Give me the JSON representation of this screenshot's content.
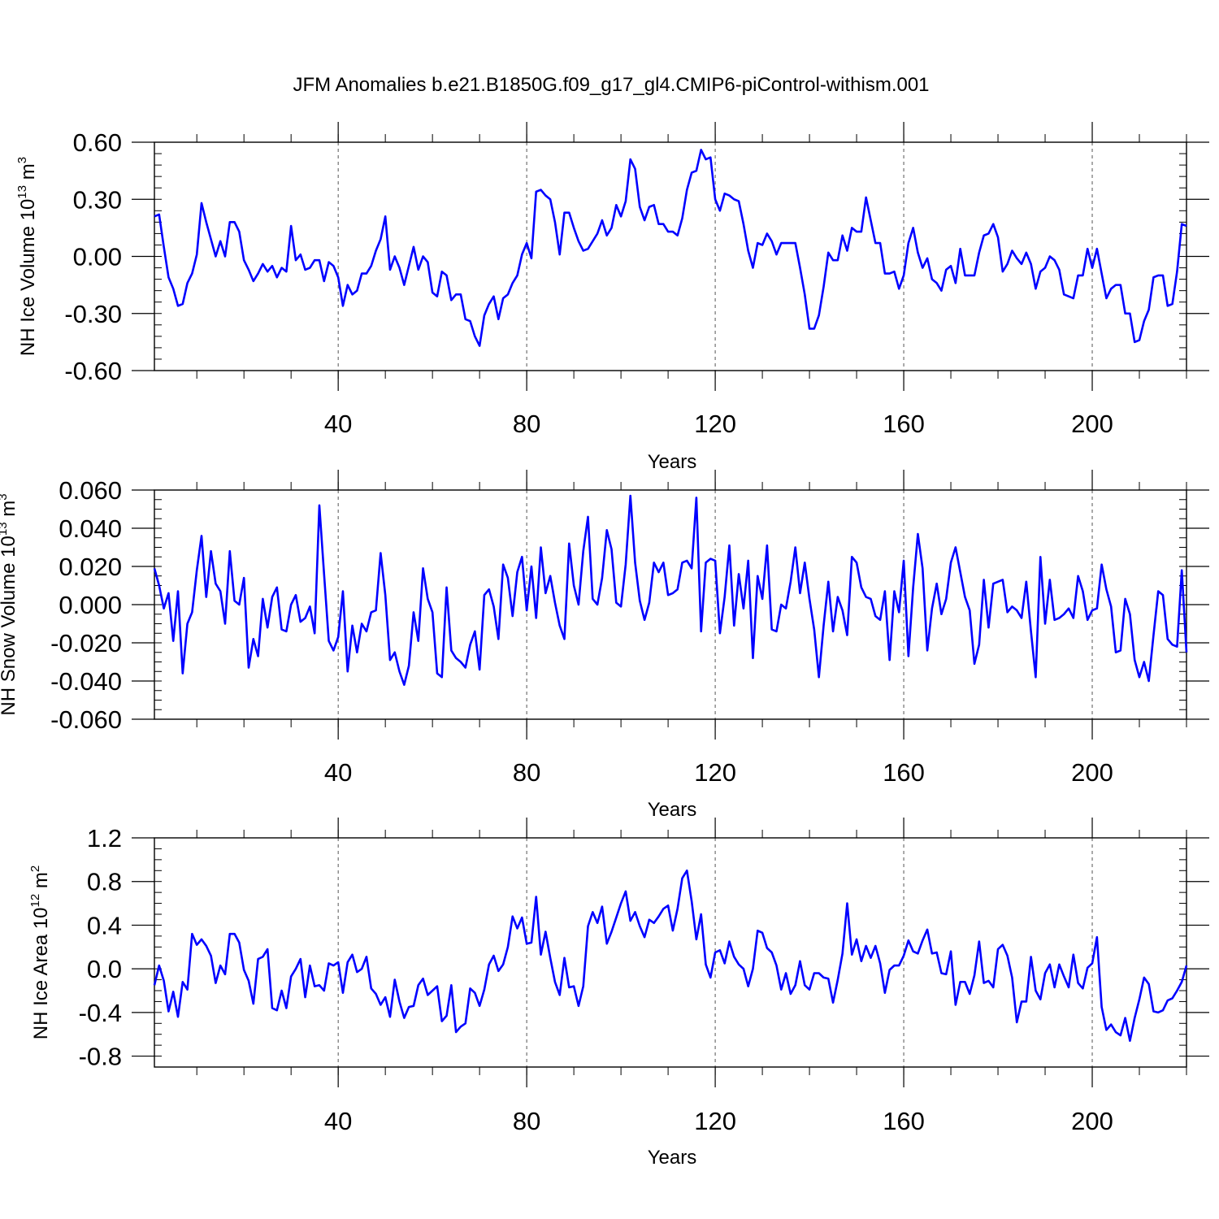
{
  "title": "JFM Anomalies b.e21.B1850G.f09_g17_gl4.CMIP6-piControl-withism.001",
  "line_color": "#0000ff",
  "chart_data": [
    {
      "type": "line",
      "xlabel": "Years",
      "ylabel": {
        "main": "NH Ice Volume 10",
        "exp": "13",
        "unit": " m",
        "unit_exp": "3"
      },
      "xlim": [
        1,
        220
      ],
      "ylim": [
        -0.6,
        0.6
      ],
      "xticks": [
        40,
        80,
        120,
        160,
        200
      ],
      "xtick_labels": [
        "40",
        "80",
        "120",
        "160",
        "200"
      ],
      "yticks": [
        0.6,
        0.3,
        0.0,
        -0.3,
        -0.6
      ],
      "ytick_labels": [
        "0.60",
        "0.30",
        "0.00",
        "-0.30",
        "-0.60"
      ],
      "ygrid_minor_step": 0.06,
      "values": [
        0.21,
        0.22,
        0.05,
        -0.11,
        -0.17,
        -0.26,
        -0.25,
        -0.14,
        -0.09,
        0.01,
        0.28,
        0.18,
        0.09,
        0.0,
        0.08,
        0.0,
        0.18,
        0.18,
        0.13,
        -0.02,
        -0.07,
        -0.13,
        -0.09,
        -0.04,
        -0.08,
        -0.05,
        -0.11,
        -0.06,
        -0.08,
        0.16,
        -0.02,
        0.01,
        -0.07,
        -0.06,
        -0.02,
        -0.02,
        -0.13,
        -0.03,
        -0.05,
        -0.11,
        -0.26,
        -0.15,
        -0.2,
        -0.18,
        -0.09,
        -0.09,
        -0.05,
        0.03,
        0.09,
        0.21,
        -0.07,
        0.0,
        -0.06,
        -0.15,
        -0.05,
        0.05,
        -0.07,
        0.0,
        -0.03,
        -0.19,
        -0.21,
        -0.08,
        -0.1,
        -0.23,
        -0.2,
        -0.2,
        -0.33,
        -0.34,
        -0.42,
        -0.47,
        -0.31,
        -0.25,
        -0.21,
        -0.33,
        -0.22,
        -0.2,
        -0.14,
        -0.1,
        0.01,
        0.07,
        -0.01,
        0.34,
        0.35,
        0.32,
        0.3,
        0.18,
        0.01,
        0.23,
        0.23,
        0.15,
        0.08,
        0.03,
        0.04,
        0.08,
        0.12,
        0.19,
        0.11,
        0.15,
        0.27,
        0.21,
        0.29,
        0.51,
        0.46,
        0.26,
        0.19,
        0.26,
        0.27,
        0.17,
        0.17,
        0.13,
        0.13,
        0.11,
        0.2,
        0.35,
        0.44,
        0.45,
        0.56,
        0.51,
        0.52,
        0.3,
        0.24,
        0.33,
        0.32,
        0.3,
        0.29,
        0.17,
        0.03,
        -0.06,
        0.07,
        0.06,
        0.12,
        0.08,
        0.01,
        0.07,
        0.07,
        0.07,
        0.07,
        -0.06,
        -0.2,
        -0.38,
        -0.38,
        -0.31,
        -0.16,
        0.02,
        -0.02,
        -0.02,
        0.11,
        0.03,
        0.15,
        0.13,
        0.13,
        0.31,
        0.19,
        0.07,
        0.07,
        -0.09,
        -0.09,
        -0.08,
        -0.17,
        -0.1,
        0.07,
        0.15,
        0.02,
        -0.06,
        -0.01,
        -0.12,
        -0.14,
        -0.18,
        -0.07,
        -0.05,
        -0.14,
        0.04,
        -0.1,
        -0.1,
        -0.1,
        0.02,
        0.11,
        0.12,
        0.17,
        0.1,
        -0.08,
        -0.04,
        0.03,
        -0.01,
        -0.04,
        0.02,
        -0.04,
        -0.17,
        -0.08,
        -0.06,
        0.0,
        -0.02,
        -0.07,
        -0.2,
        -0.21,
        -0.22,
        -0.1,
        -0.1,
        0.04,
        -0.06,
        0.04,
        -0.09,
        -0.22,
        -0.17,
        -0.15,
        -0.15,
        -0.3,
        -0.3,
        -0.45,
        -0.44,
        -0.34,
        -0.28,
        -0.11,
        -0.1,
        -0.1,
        -0.26,
        -0.25,
        -0.08,
        0.17,
        0.16
      ]
    },
    {
      "type": "line",
      "xlabel": "Years",
      "ylabel": {
        "main": "NH Snow Volume 10",
        "exp": "13",
        "unit": " m",
        "unit_exp": "3"
      },
      "xlim": [
        1,
        220
      ],
      "ylim": [
        -0.06,
        0.06
      ],
      "xticks": [
        40,
        80,
        120,
        160,
        200
      ],
      "xtick_labels": [
        "40",
        "80",
        "120",
        "160",
        "200"
      ],
      "yticks": [
        0.06,
        0.04,
        0.02,
        0.0,
        -0.02,
        -0.04,
        -0.06
      ],
      "ytick_labels": [
        "0.060",
        "0.040",
        "0.020",
        "0.000",
        "-0.020",
        "-0.040",
        "-0.060"
      ],
      "ygrid_minor_step": 0.005,
      "values": [
        0.019,
        0.01,
        -0.002,
        0.006,
        -0.019,
        0.007,
        -0.036,
        -0.01,
        -0.004,
        0.018,
        0.036,
        0.004,
        0.028,
        0.011,
        0.007,
        -0.01,
        0.028,
        0.002,
        0.0,
        0.014,
        -0.033,
        -0.018,
        -0.027,
        0.003,
        -0.012,
        0.004,
        0.009,
        -0.013,
        -0.014,
        0.0,
        0.005,
        -0.009,
        -0.007,
        -0.001,
        -0.015,
        0.052,
        0.016,
        -0.019,
        -0.024,
        -0.017,
        0.007,
        -0.035,
        -0.011,
        -0.025,
        -0.01,
        -0.014,
        -0.004,
        -0.003,
        0.027,
        0.005,
        -0.029,
        -0.025,
        -0.035,
        -0.042,
        -0.032,
        -0.004,
        -0.019,
        0.019,
        0.003,
        -0.004,
        -0.036,
        -0.038,
        0.009,
        -0.024,
        -0.028,
        -0.03,
        -0.033,
        -0.021,
        -0.014,
        -0.034,
        0.005,
        0.008,
        -0.001,
        -0.018,
        0.021,
        0.014,
        -0.006,
        0.017,
        0.025,
        -0.003,
        0.02,
        -0.007,
        0.03,
        0.006,
        0.015,
        0.001,
        -0.011,
        -0.018,
        0.032,
        0.01,
        0.0,
        0.028,
        0.046,
        0.003,
        0.0,
        0.014,
        0.039,
        0.029,
        0.001,
        -0.001,
        0.021,
        0.057,
        0.022,
        0.002,
        -0.008,
        0.001,
        0.022,
        0.017,
        0.022,
        0.005,
        0.006,
        0.008,
        0.022,
        0.023,
        0.019,
        0.056,
        -0.014,
        0.022,
        0.024,
        0.023,
        -0.015,
        0.004,
        0.031,
        -0.011,
        0.016,
        -0.002,
        0.023,
        -0.028,
        0.015,
        0.003,
        0.031,
        -0.013,
        -0.014,
        0.0,
        -0.002,
        0.012,
        0.03,
        0.006,
        0.022,
        0.003,
        -0.013,
        -0.038,
        -0.011,
        0.012,
        -0.014,
        0.004,
        -0.003,
        -0.016,
        0.025,
        0.022,
        0.009,
        0.004,
        0.003,
        -0.006,
        -0.008,
        0.007,
        -0.029,
        0.007,
        -0.004,
        0.023,
        -0.027,
        0.009,
        0.037,
        0.019,
        -0.024,
        -0.002,
        0.011,
        -0.005,
        0.003,
        0.022,
        0.03,
        0.017,
        0.004,
        -0.003,
        -0.031,
        -0.021,
        0.013,
        -0.012,
        0.011,
        0.012,
        0.013,
        -0.004,
        -0.001,
        -0.003,
        -0.007,
        0.012,
        -0.014,
        -0.038,
        0.025,
        -0.01,
        0.013,
        -0.008,
        -0.007,
        -0.005,
        -0.002,
        -0.007,
        0.015,
        0.007,
        -0.008,
        -0.003,
        -0.002,
        0.021,
        0.008,
        -0.001,
        -0.025,
        -0.024,
        0.003,
        -0.005,
        -0.029,
        -0.038,
        -0.03,
        -0.04,
        -0.016,
        0.007,
        0.005,
        -0.018,
        -0.021,
        -0.022,
        0.018,
        -0.025
      ]
    },
    {
      "type": "line",
      "xlabel": "Years",
      "ylabel": {
        "main": "NH Ice Area 10",
        "exp": "12",
        "unit": " m",
        "unit_exp": "2"
      },
      "xlim": [
        1,
        220
      ],
      "ylim": [
        -0.9,
        1.2
      ],
      "xticks": [
        40,
        80,
        120,
        160,
        200
      ],
      "xtick_labels": [
        "40",
        "80",
        "120",
        "160",
        "200"
      ],
      "yticks": [
        1.2,
        0.8,
        0.4,
        0.0,
        -0.4,
        -0.8
      ],
      "ytick_labels": [
        "1.2",
        "0.8",
        "0.4",
        "0.0",
        "-0.4",
        "-0.8"
      ],
      "ygrid_minor_step": 0.1,
      "values": [
        -0.15,
        0.03,
        -0.11,
        -0.39,
        -0.21,
        -0.44,
        -0.12,
        -0.19,
        0.32,
        0.22,
        0.27,
        0.21,
        0.12,
        -0.13,
        0.03,
        -0.05,
        0.32,
        0.32,
        0.24,
        -0.01,
        -0.11,
        -0.32,
        0.09,
        0.11,
        0.18,
        -0.36,
        -0.38,
        -0.2,
        -0.36,
        -0.07,
        0.0,
        0.09,
        -0.26,
        0.03,
        -0.16,
        -0.15,
        -0.2,
        0.05,
        0.03,
        0.06,
        -0.22,
        0.06,
        0.13,
        -0.03,
        0.0,
        0.11,
        -0.18,
        -0.23,
        -0.33,
        -0.26,
        -0.44,
        -0.1,
        -0.3,
        -0.45,
        -0.35,
        -0.34,
        -0.15,
        -0.09,
        -0.24,
        -0.2,
        -0.16,
        -0.48,
        -0.43,
        -0.15,
        -0.58,
        -0.53,
        -0.5,
        -0.18,
        -0.22,
        -0.34,
        -0.19,
        0.04,
        0.12,
        -0.02,
        0.04,
        0.2,
        0.48,
        0.37,
        0.47,
        0.23,
        0.24,
        0.66,
        0.13,
        0.34,
        0.1,
        -0.12,
        -0.24,
        0.1,
        -0.17,
        -0.16,
        -0.34,
        -0.16,
        0.39,
        0.52,
        0.42,
        0.57,
        0.23,
        0.34,
        0.47,
        0.6,
        0.71,
        0.44,
        0.52,
        0.39,
        0.29,
        0.45,
        0.42,
        0.48,
        0.55,
        0.58,
        0.35,
        0.55,
        0.83,
        0.9,
        0.62,
        0.27,
        0.5,
        0.04,
        -0.08,
        0.15,
        0.17,
        0.05,
        0.25,
        0.11,
        0.04,
        0.0,
        -0.16,
        0.0,
        0.35,
        0.33,
        0.19,
        0.15,
        0.03,
        -0.19,
        -0.04,
        -0.23,
        -0.15,
        0.07,
        -0.15,
        -0.19,
        -0.04,
        -0.04,
        -0.08,
        -0.09,
        -0.31,
        -0.1,
        0.14,
        0.6,
        0.13,
        0.27,
        0.07,
        0.21,
        0.1,
        0.21,
        0.05,
        -0.22,
        -0.01,
        0.03,
        0.03,
        0.12,
        0.26,
        0.16,
        0.14,
        0.26,
        0.36,
        0.14,
        0.15,
        -0.04,
        -0.05,
        0.16,
        -0.33,
        -0.12,
        -0.12,
        -0.23,
        -0.06,
        0.25,
        -0.13,
        -0.11,
        -0.17,
        0.18,
        0.22,
        0.12,
        -0.08,
        -0.49,
        -0.3,
        -0.3,
        0.11,
        -0.2,
        -0.28,
        -0.04,
        0.04,
        -0.17,
        0.04,
        -0.07,
        -0.17,
        0.13,
        -0.13,
        -0.18,
        0.01,
        0.05,
        0.29,
        -0.35,
        -0.56,
        -0.51,
        -0.58,
        -0.61,
        -0.45,
        -0.66,
        -0.45,
        -0.28,
        -0.08,
        -0.14,
        -0.39,
        -0.4,
        -0.38,
        -0.29,
        -0.27,
        -0.2,
        -0.12,
        0.03
      ]
    }
  ]
}
